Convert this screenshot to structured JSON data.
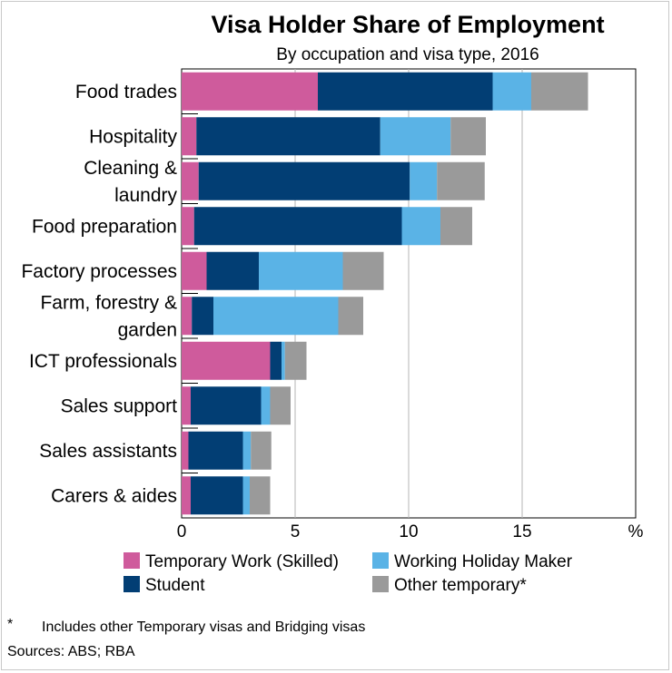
{
  "chart_data": {
    "type": "bar",
    "orientation": "horizontal",
    "stacked": true,
    "title": "Visa Holder Share of Employment",
    "subtitle": "By occupation and visa type, 2016",
    "xlabel": "%",
    "ylabel": "",
    "xlim": [
      0,
      20
    ],
    "xticks": [
      0,
      5,
      10,
      15
    ],
    "grid": true,
    "legend_position": "bottom",
    "categories": [
      [
        "Food trades"
      ],
      [
        "Hospitality"
      ],
      [
        "Cleaning &",
        "laundry"
      ],
      [
        "Food preparation"
      ],
      [
        "Factory processes"
      ],
      [
        "Farm, forestry &",
        "garden"
      ],
      [
        "ICT professionals"
      ],
      [
        "Sales support"
      ],
      [
        "Sales assistants"
      ],
      [
        "Carers & aides"
      ]
    ],
    "series": [
      {
        "name": "Temporary Work (Skilled)",
        "color": "#cf5b9c",
        "values": [
          6.0,
          0.65,
          0.75,
          0.55,
          1.1,
          0.45,
          3.9,
          0.4,
          0.3,
          0.4
        ]
      },
      {
        "name": "Student",
        "color": "#023e74",
        "values": [
          7.7,
          8.1,
          9.3,
          9.15,
          2.3,
          0.95,
          0.5,
          3.1,
          2.4,
          2.3
        ]
      },
      {
        "name": "Working Holiday Maker",
        "color": "#5ab3e6",
        "values": [
          1.7,
          3.1,
          1.2,
          1.7,
          3.7,
          5.5,
          0.15,
          0.4,
          0.35,
          0.3
        ]
      },
      {
        "name": "Other temporary*",
        "color": "#9a9a9a",
        "values": [
          2.5,
          1.55,
          2.1,
          1.4,
          1.8,
          1.1,
          0.95,
          0.9,
          0.9,
          0.9
        ]
      }
    ],
    "legend_labels": [
      "Temporary Work (Skilled)",
      "Working Holiday Maker",
      "Student",
      "Other temporary*"
    ]
  },
  "footnote": {
    "symbol": "*",
    "text": "Includes other Temporary visas and Bridging visas"
  },
  "sources": "Sources: ABS; RBA"
}
